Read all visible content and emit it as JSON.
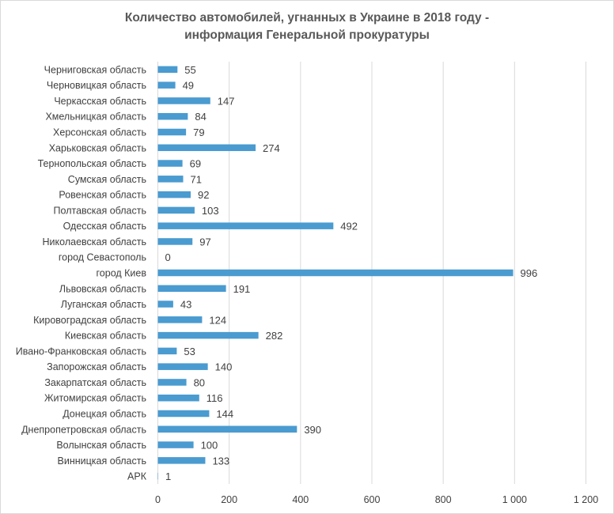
{
  "chart_data": {
    "type": "bar",
    "orientation": "horizontal",
    "title": "Количество автомобилей, угнанных в Украине в 2018 году - информация Генеральной прокуратуры",
    "title_lines": [
      "Количество автомобилей, угнанных в Украине в 2018 году -",
      "информация Генеральной прокуратуры"
    ],
    "xlabel": "",
    "ylabel": "",
    "categories": [
      "АРК",
      "Винницкая область",
      "Волынская область",
      "Днепропетровская область",
      "Донецкая область",
      "Житомирская область",
      "Закарпатская область",
      "Запорожская область",
      "Ивано-Франковская область",
      "Киевская область",
      "Кировоградская область",
      "Луганская область",
      "Львовская область",
      "город Киев",
      "город Севастополь",
      "Николаевская область",
      "Одесская область",
      "Полтавская область",
      "Ровенская область",
      "Сумская область",
      "Тернопольская область",
      "Харьковская область",
      "Херсонская область",
      "Хмельницкая область",
      "Черкасская область",
      "Черновицкая область",
      "Черниговская область"
    ],
    "values": [
      1,
      133,
      100,
      390,
      144,
      116,
      80,
      140,
      53,
      282,
      124,
      43,
      191,
      996,
      0,
      97,
      492,
      103,
      92,
      71,
      69,
      274,
      79,
      84,
      147,
      49,
      55
    ],
    "value_labels": [
      "1",
      "133",
      "100",
      "390",
      "144",
      "116",
      "80",
      "140",
      "53",
      "282",
      "124",
      "43",
      "191",
      "996",
      "0",
      "97",
      "492",
      "103",
      "92",
      "71",
      "69",
      "274",
      "79",
      "84",
      "147",
      "49",
      "55"
    ],
    "xlim": [
      0,
      1200
    ],
    "xticks": [
      0,
      200,
      400,
      600,
      800,
      1000,
      1200
    ],
    "xtick_labels": [
      "0",
      "200",
      "400",
      "600",
      "800",
      "1 000",
      "1 200"
    ],
    "grid": "vertical",
    "legend": "none",
    "bar_color": "#4a9bd0",
    "grid_color": "#d9d9d9",
    "text_color": "#404040"
  }
}
